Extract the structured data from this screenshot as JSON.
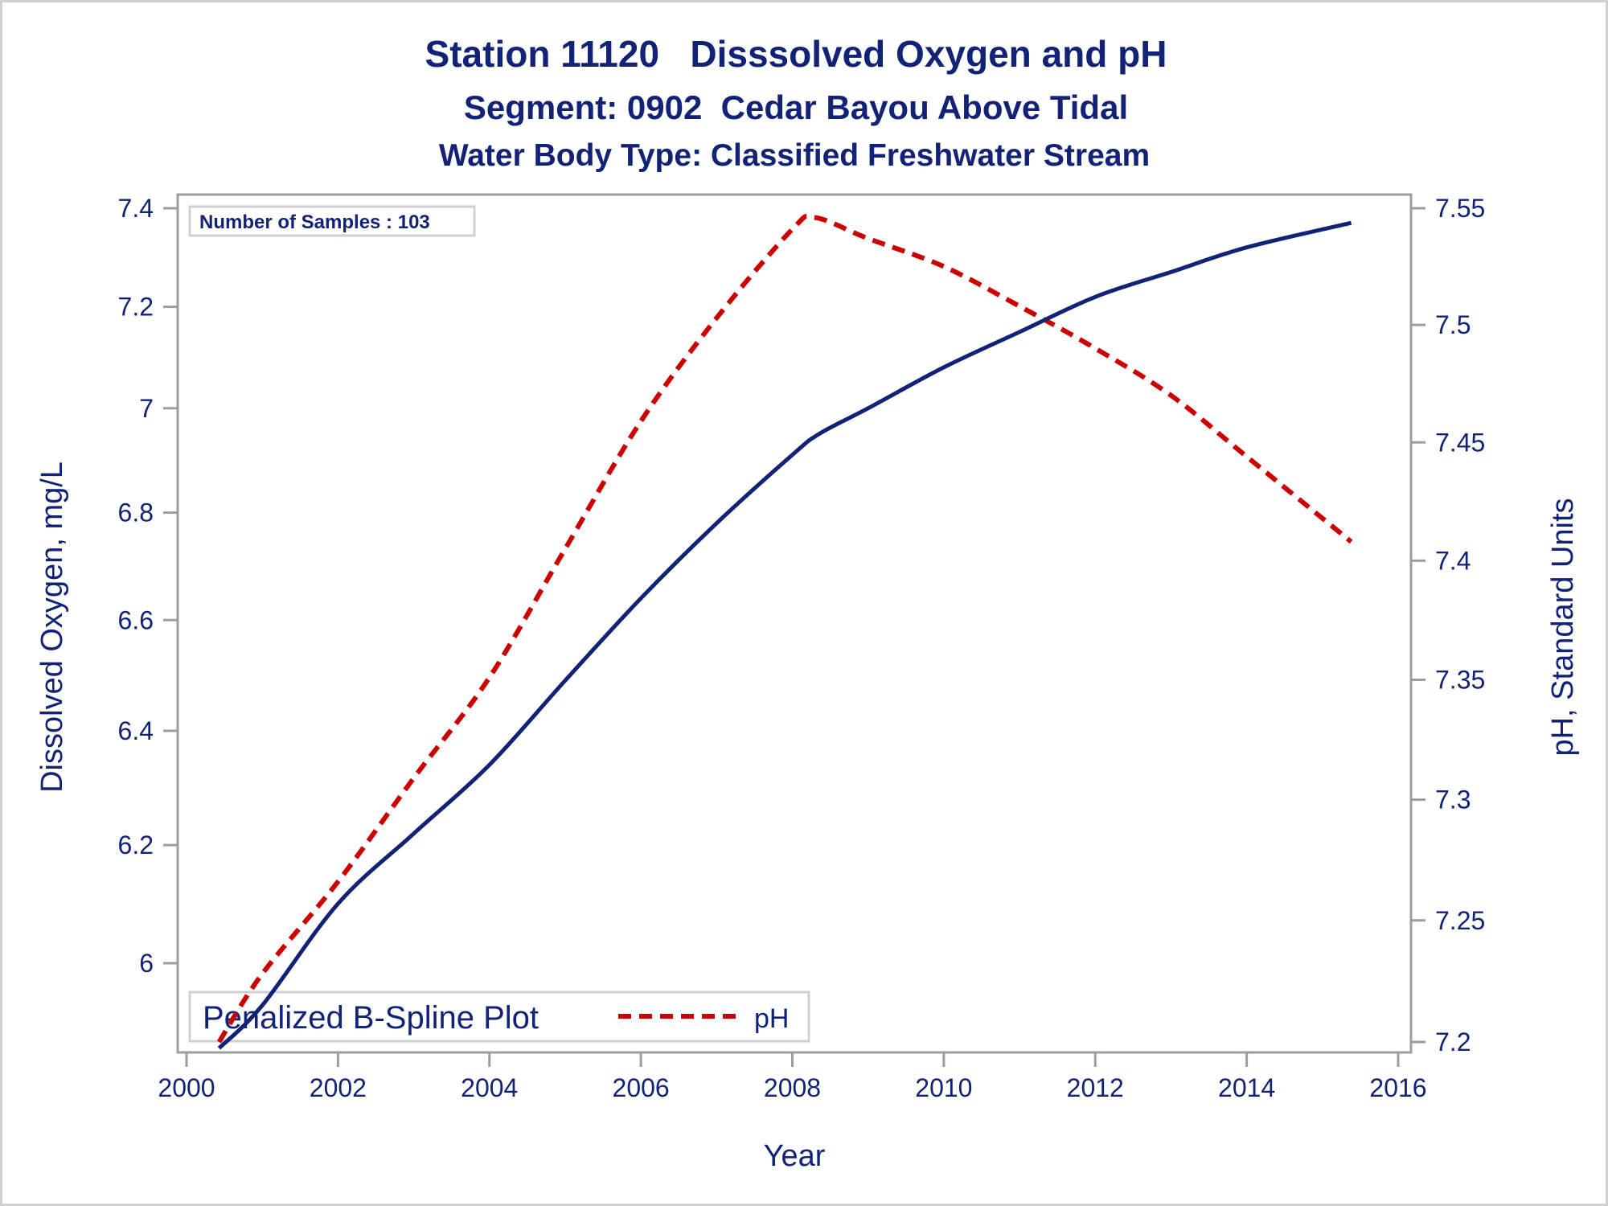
{
  "chart_data": {
    "type": "line",
    "title": "Station 11120   Disssolved Oxygen and pH",
    "subtitle": "Segment: 0902  Cedar Bayou Above Tidal",
    "subtitle2": "Water Body Type: Classified Freshwater Stream",
    "xlabel": "Year",
    "ylabel": "Dissolved Oxygen, mg/L",
    "y2label": "pH, Standard Units",
    "xlim": [
      2000,
      2016
    ],
    "ylim": [
      5.86,
      7.42
    ],
    "y2lim": [
      7.195,
      7.555
    ],
    "yscale": "log",
    "y2scale": "log",
    "grid": false,
    "x_ticks": [
      "2000",
      "2002",
      "2004",
      "2006",
      "2008",
      "2010",
      "2012",
      "2014",
      "2016"
    ],
    "y_ticks": [
      "6",
      "6.2",
      "6.4",
      "6.6",
      "6.8",
      "7",
      "7.2",
      "7.4"
    ],
    "y2_ticks": [
      "7.2",
      "7.25",
      "7.3",
      "7.35",
      "7.4",
      "7.45",
      "7.5",
      "7.55"
    ],
    "annotation": "Number of Samples : 103",
    "legend": {
      "title": "Penalized B-Spline Plot",
      "placement": "bottom-left",
      "entries": [
        {
          "label": "pH",
          "style": "dashed",
          "color": "#cc0000"
        }
      ]
    },
    "series": [
      {
        "name": "Dissolved Oxygen",
        "axis": "left",
        "color": "#112277",
        "style": "solid",
        "x": [
          2000.43,
          2001,
          2002,
          2003,
          2004,
          2005,
          2006,
          2007,
          2008,
          2008.35,
          2009,
          2010,
          2011,
          2012,
          2013,
          2014,
          2015.38
        ],
        "values": [
          5.86,
          5.93,
          6.1,
          6.22,
          6.34,
          6.49,
          6.64,
          6.78,
          6.91,
          6.95,
          7.0,
          7.08,
          7.15,
          7.22,
          7.27,
          7.32,
          7.37
        ]
      },
      {
        "name": "pH",
        "axis": "right",
        "color": "#cc0000",
        "style": "dashed",
        "x": [
          2000.43,
          2001,
          2002,
          2003,
          2004,
          2005,
          2006,
          2007,
          2008,
          2008.3,
          2009,
          2010,
          2011,
          2012,
          2013,
          2014,
          2015.38
        ],
        "values": [
          7.2,
          7.228,
          7.266,
          7.309,
          7.351,
          7.405,
          7.459,
          7.503,
          7.541,
          7.546,
          7.537,
          7.525,
          7.508,
          7.49,
          7.47,
          7.444,
          7.408
        ]
      }
    ]
  }
}
